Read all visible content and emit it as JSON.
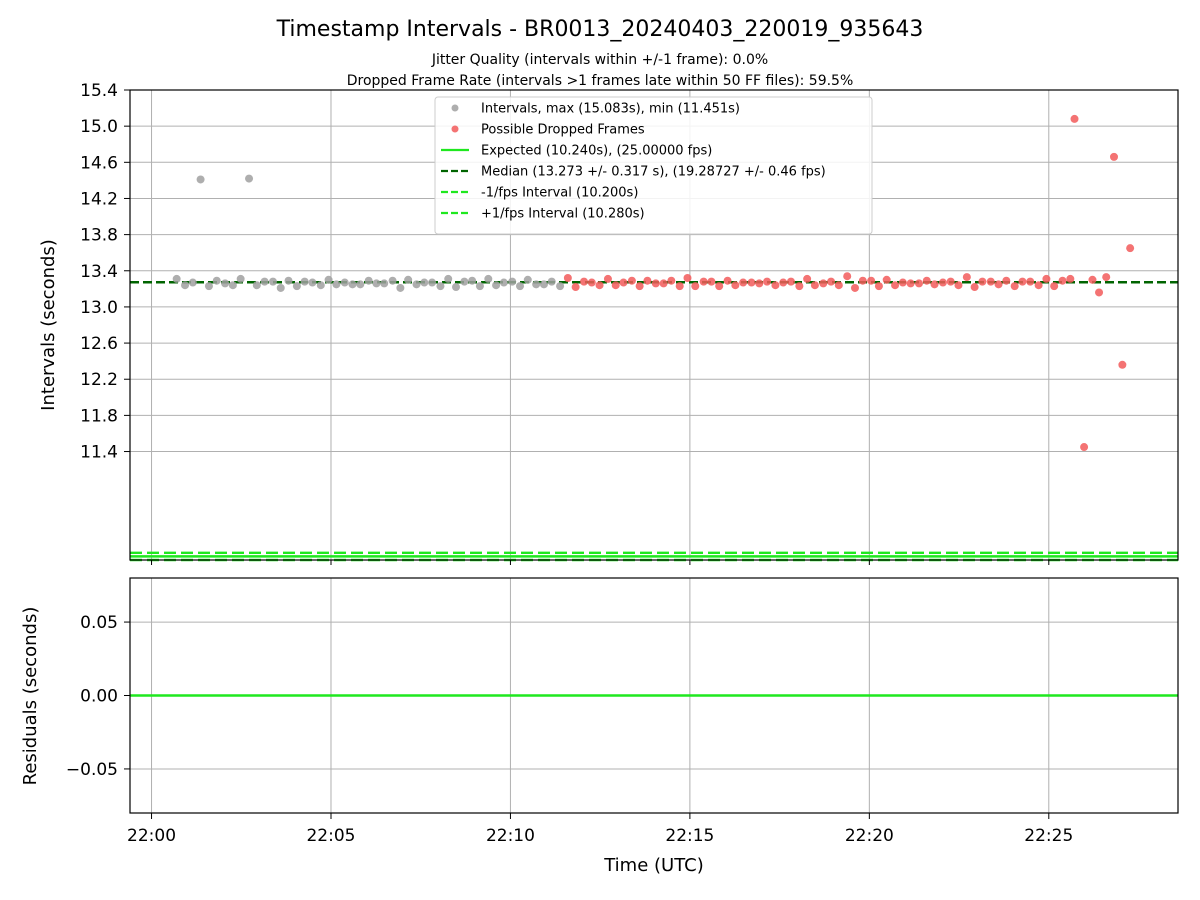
{
  "title": "Timestamp Intervals - BR0013_20240403_220019_935643",
  "subtitles": [
    "Jitter Quality (intervals within +/-1 frame): 0.0%",
    "Dropped Frame Rate (intervals >1 frames late within 50 FF files): 59.5%"
  ],
  "colors": {
    "normal": "#a0a0a0",
    "dropped": "#f25a5a",
    "expected": "#1fe81f",
    "median": "#006400",
    "band": "#1fe81f",
    "grid": "#b0b0b0"
  },
  "chart_data": [
    {
      "type": "scatter",
      "panel": "top",
      "ylabel": "Intervals (seconds)",
      "ylim": [
        10.2,
        15.4
      ],
      "yticks": [
        "11.4",
        "11.8",
        "12.2",
        "12.6",
        "13.0",
        "13.4",
        "13.8",
        "14.2",
        "14.6",
        "15.0",
        "15.4"
      ],
      "xlim": [
        "21:59:24",
        "22:28:36"
      ],
      "grid": true,
      "legend_position": "upper-center",
      "legend": [
        {
          "kind": "marker",
          "color_key": "normal",
          "label": "Intervals, max (15.083s), min (11.451s)"
        },
        {
          "kind": "marker",
          "color_key": "dropped",
          "label": "Possible Dropped Frames"
        },
        {
          "kind": "line",
          "color_key": "expected",
          "dash": false,
          "label": "Expected (10.240s), (25.00000 fps)"
        },
        {
          "kind": "line",
          "color_key": "median",
          "dash": true,
          "label": "Median (13.273 +/- 0.317 s), (19.28727 +/- 0.46 fps)"
        },
        {
          "kind": "line",
          "color_key": "band",
          "dash": true,
          "label": "-1/fps Interval (10.200s)"
        },
        {
          "kind": "line",
          "color_key": "band",
          "dash": true,
          "label": "+1/fps Interval (10.280s)"
        }
      ],
      "lines": {
        "expected": 10.24,
        "median": 13.273,
        "minus_fps": 10.2,
        "plus_fps": 10.28
      },
      "series": [
        {
          "name": "Intervals",
          "color_key": "normal",
          "points": [
            [
              "22:00:42",
              13.31
            ],
            [
              "22:00:56",
              13.24
            ],
            [
              "22:01:09",
              13.27
            ],
            [
              "22:01:22",
              14.41
            ],
            [
              "22:01:36",
              13.23
            ],
            [
              "22:01:49",
              13.29
            ],
            [
              "22:02:03",
              13.26
            ],
            [
              "22:02:16",
              13.24
            ],
            [
              "22:02:29",
              13.31
            ],
            [
              "22:02:43",
              14.42
            ],
            [
              "22:02:56",
              13.24
            ],
            [
              "22:03:09",
              13.28
            ],
            [
              "22:03:23",
              13.28
            ],
            [
              "22:03:36",
              13.21
            ],
            [
              "22:03:49",
              13.29
            ],
            [
              "22:04:03",
              13.23
            ],
            [
              "22:04:16",
              13.28
            ],
            [
              "22:04:29",
              13.27
            ],
            [
              "22:04:43",
              13.24
            ],
            [
              "22:04:56",
              13.3
            ],
            [
              "22:05:09",
              13.25
            ],
            [
              "22:05:23",
              13.27
            ],
            [
              "22:05:36",
              13.25
            ],
            [
              "22:05:49",
              13.25
            ],
            [
              "22:06:03",
              13.29
            ],
            [
              "22:06:16",
              13.26
            ],
            [
              "22:06:29",
              13.26
            ],
            [
              "22:06:43",
              13.29
            ],
            [
              "22:06:56",
              13.21
            ],
            [
              "22:07:09",
              13.3
            ],
            [
              "22:07:23",
              13.25
            ],
            [
              "22:07:36",
              13.27
            ],
            [
              "22:07:49",
              13.27
            ],
            [
              "22:08:03",
              13.23
            ],
            [
              "22:08:16",
              13.31
            ],
            [
              "22:08:29",
              13.22
            ],
            [
              "22:08:43",
              13.28
            ],
            [
              "22:08:56",
              13.29
            ],
            [
              "22:09:09",
              13.23
            ],
            [
              "22:09:23",
              13.31
            ],
            [
              "22:09:36",
              13.24
            ],
            [
              "22:09:49",
              13.27
            ],
            [
              "22:10:03",
              13.28
            ],
            [
              "22:10:16",
              13.23
            ],
            [
              "22:10:29",
              13.3
            ],
            [
              "22:10:43",
              13.25
            ],
            [
              "22:10:56",
              13.25
            ],
            [
              "22:11:09",
              13.28
            ],
            [
              "22:11:23",
              13.23
            ]
          ]
        },
        {
          "name": "Possible Dropped Frames",
          "color_key": "dropped",
          "points": [
            [
              "22:11:36",
              13.32
            ],
            [
              "22:11:49",
              13.22
            ],
            [
              "22:12:03",
              13.28
            ],
            [
              "22:12:16",
              13.27
            ],
            [
              "22:12:29",
              13.24
            ],
            [
              "22:12:43",
              13.31
            ],
            [
              "22:12:56",
              13.24
            ],
            [
              "22:13:09",
              13.27
            ],
            [
              "22:13:23",
              13.29
            ],
            [
              "22:13:36",
              13.23
            ],
            [
              "22:13:49",
              13.29
            ],
            [
              "22:14:03",
              13.26
            ],
            [
              "22:14:16",
              13.26
            ],
            [
              "22:14:29",
              13.29
            ],
            [
              "22:14:43",
              13.23
            ],
            [
              "22:14:56",
              13.32
            ],
            [
              "22:15:09",
              13.23
            ],
            [
              "22:15:23",
              13.28
            ],
            [
              "22:15:36",
              13.28
            ],
            [
              "22:15:49",
              13.23
            ],
            [
              "22:16:03",
              13.29
            ],
            [
              "22:16:16",
              13.24
            ],
            [
              "22:16:29",
              13.27
            ],
            [
              "22:16:43",
              13.27
            ],
            [
              "22:16:56",
              13.26
            ],
            [
              "22:17:09",
              13.28
            ],
            [
              "22:17:23",
              13.24
            ],
            [
              "22:17:36",
              13.27
            ],
            [
              "22:17:49",
              13.28
            ],
            [
              "22:18:03",
              13.23
            ],
            [
              "22:18:16",
              13.31
            ],
            [
              "22:18:29",
              13.24
            ],
            [
              "22:18:43",
              13.26
            ],
            [
              "22:18:56",
              13.28
            ],
            [
              "22:19:09",
              13.24
            ],
            [
              "22:19:23",
              13.34
            ],
            [
              "22:19:36",
              13.21
            ],
            [
              "22:19:49",
              13.29
            ],
            [
              "22:20:03",
              13.29
            ],
            [
              "22:20:16",
              13.23
            ],
            [
              "22:20:29",
              13.3
            ],
            [
              "22:20:43",
              13.24
            ],
            [
              "22:20:56",
              13.27
            ],
            [
              "22:21:09",
              13.26
            ],
            [
              "22:21:23",
              13.26
            ],
            [
              "22:21:36",
              13.29
            ],
            [
              "22:21:49",
              13.25
            ],
            [
              "22:22:03",
              13.27
            ],
            [
              "22:22:16",
              13.28
            ],
            [
              "22:22:29",
              13.24
            ],
            [
              "22:22:43",
              13.33
            ],
            [
              "22:22:56",
              13.22
            ],
            [
              "22:23:09",
              13.28
            ],
            [
              "22:23:23",
              13.28
            ],
            [
              "22:23:36",
              13.25
            ],
            [
              "22:23:49",
              13.29
            ],
            [
              "22:24:03",
              13.23
            ],
            [
              "22:24:16",
              13.28
            ],
            [
              "22:24:29",
              13.28
            ],
            [
              "22:24:43",
              13.24
            ],
            [
              "22:24:56",
              13.31
            ],
            [
              "22:25:09",
              13.23
            ],
            [
              "22:25:23",
              13.29
            ],
            [
              "22:25:36",
              13.31
            ],
            [
              "22:25:43",
              15.08
            ],
            [
              "22:25:59",
              11.45
            ],
            [
              "22:26:13",
              13.3
            ],
            [
              "22:26:24",
              13.16
            ],
            [
              "22:26:36",
              13.33
            ],
            [
              "22:26:49",
              14.66
            ],
            [
              "22:27:03",
              12.36
            ],
            [
              "22:27:16",
              13.65
            ]
          ]
        }
      ]
    },
    {
      "type": "line",
      "panel": "bottom",
      "xlabel": "Time (UTC)",
      "ylabel": "Residuals (seconds)",
      "ylim": [
        -0.08,
        0.08
      ],
      "yticks": [
        "−0.05",
        "0.00",
        "0.05"
      ],
      "xticks": [
        "22:00",
        "22:05",
        "22:10",
        "22:15",
        "22:20",
        "22:25"
      ],
      "grid": true,
      "series": [
        {
          "color_key": "expected",
          "y": 0.0
        }
      ]
    }
  ]
}
